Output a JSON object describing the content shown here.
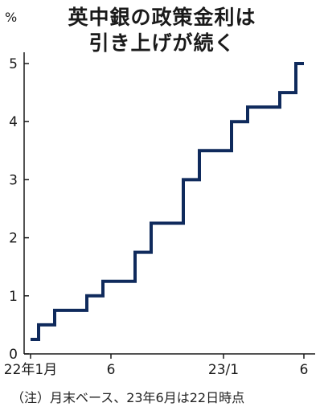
{
  "chart_data": {
    "type": "line",
    "step": true,
    "title_lines": [
      "英中銀の政策金利は",
      "引き上げが続く"
    ],
    "y_unit": "%",
    "note": "（注）月末ベース、23年6月は22日時点",
    "ylim": [
      0,
      5
    ],
    "yticks": [
      0,
      1,
      2,
      3,
      4,
      5
    ],
    "x_range": [
      0,
      17
    ],
    "xticks": [
      {
        "pos": 0,
        "label": "22年1月"
      },
      {
        "pos": 5,
        "label": "6"
      },
      {
        "pos": 12,
        "label": "23/1"
      },
      {
        "pos": 17,
        "label": "6"
      }
    ],
    "series": [
      {
        "color": "#0f2a5c",
        "x": [
          "2022-01",
          "2022-02",
          "2022-03",
          "2022-04",
          "2022-05",
          "2022-06",
          "2022-07",
          "2022-08",
          "2022-09",
          "2022-10",
          "2022-11",
          "2022-12",
          "2023-01",
          "2023-02",
          "2023-03",
          "2023-04",
          "2023-05",
          "2023-06"
        ],
        "values": [
          0.25,
          0.5,
          0.75,
          0.75,
          1.0,
          1.25,
          1.25,
          1.75,
          2.25,
          2.25,
          3.0,
          3.5,
          3.5,
          4.0,
          4.25,
          4.25,
          4.5,
          5.0
        ]
      }
    ]
  }
}
